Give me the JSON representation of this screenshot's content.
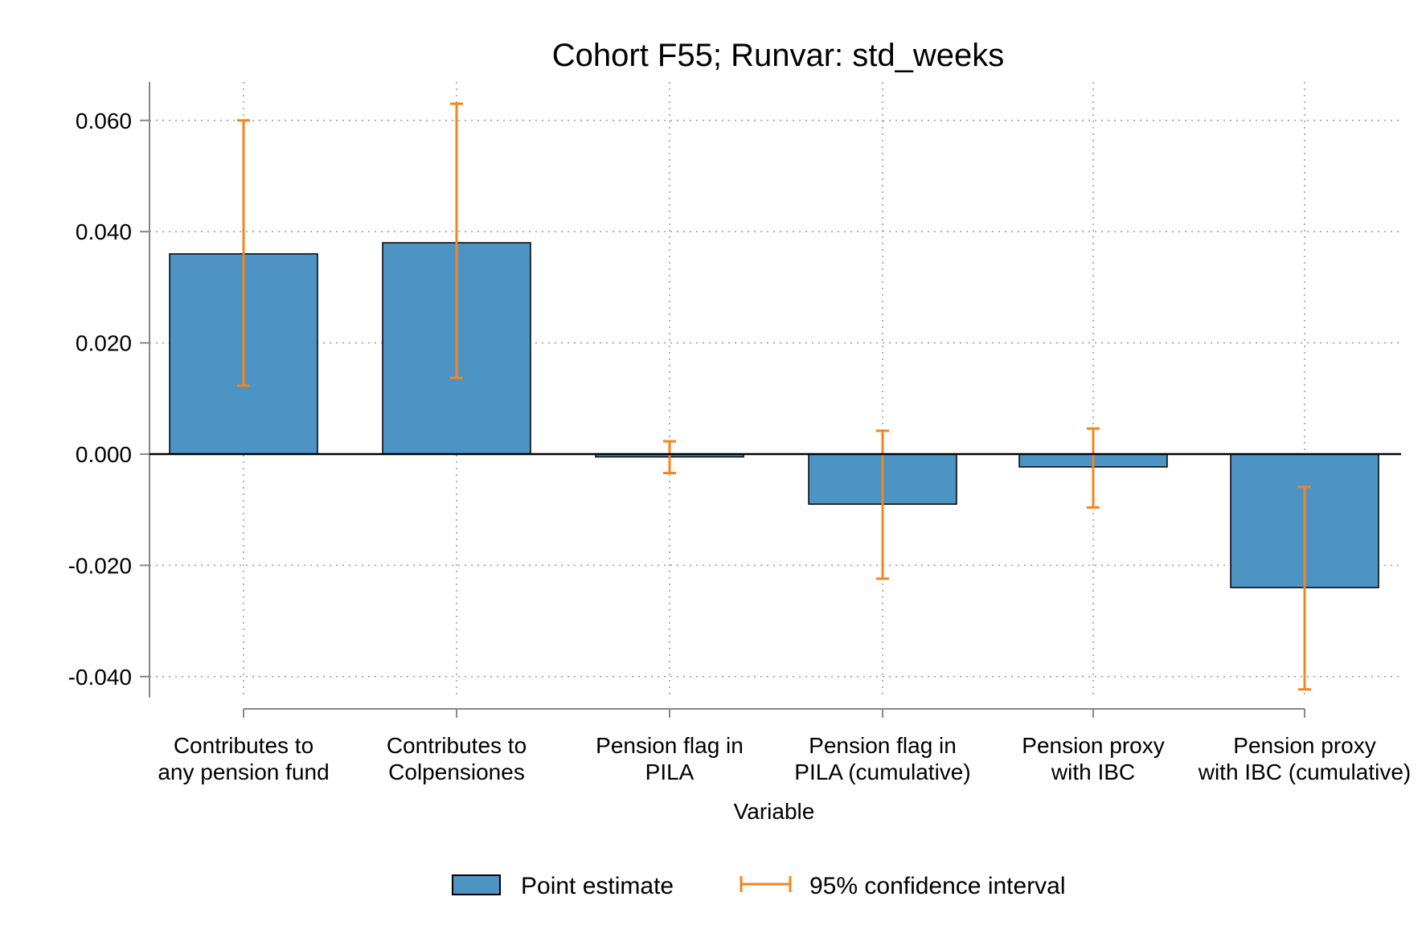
{
  "chart_data": {
    "type": "bar",
    "title": "Cohort F55; Runvar: std_weeks",
    "xlabel": "Variable",
    "ylabel": "",
    "ylim": [
      -0.046,
      0.066
    ],
    "yticks": [
      "0.060",
      "0.040",
      "0.020",
      "0.000",
      "-0.020",
      "-0.040"
    ],
    "ytick_values": [
      0.06,
      0.04,
      0.02,
      0.0,
      -0.02,
      -0.04
    ],
    "grid": true,
    "legend_position": "bottom",
    "categories": [
      [
        "Contributes to",
        "any pension fund"
      ],
      [
        "Contributes to",
        "Colpensiones"
      ],
      [
        "Pension flag in",
        "PILA"
      ],
      [
        "Pension flag in",
        "PILA (cumulative)"
      ],
      [
        "Pension proxy",
        "with IBC"
      ],
      [
        "Pension proxy",
        "with IBC (cumulative)"
      ]
    ],
    "series": [
      {
        "name": "Point estimate",
        "values": [
          0.036,
          0.038,
          -0.0005,
          -0.009,
          -0.0023,
          -0.024
        ],
        "color": "#4d93c4"
      },
      {
        "name": "95% confidence interval",
        "lower": [
          0.0123,
          0.0137,
          -0.0034,
          -0.0224,
          -0.0096,
          -0.0423
        ],
        "upper": [
          0.06,
          0.063,
          0.0023,
          0.0042,
          0.0046,
          -0.0059
        ],
        "color": "#f5841f"
      }
    ]
  }
}
